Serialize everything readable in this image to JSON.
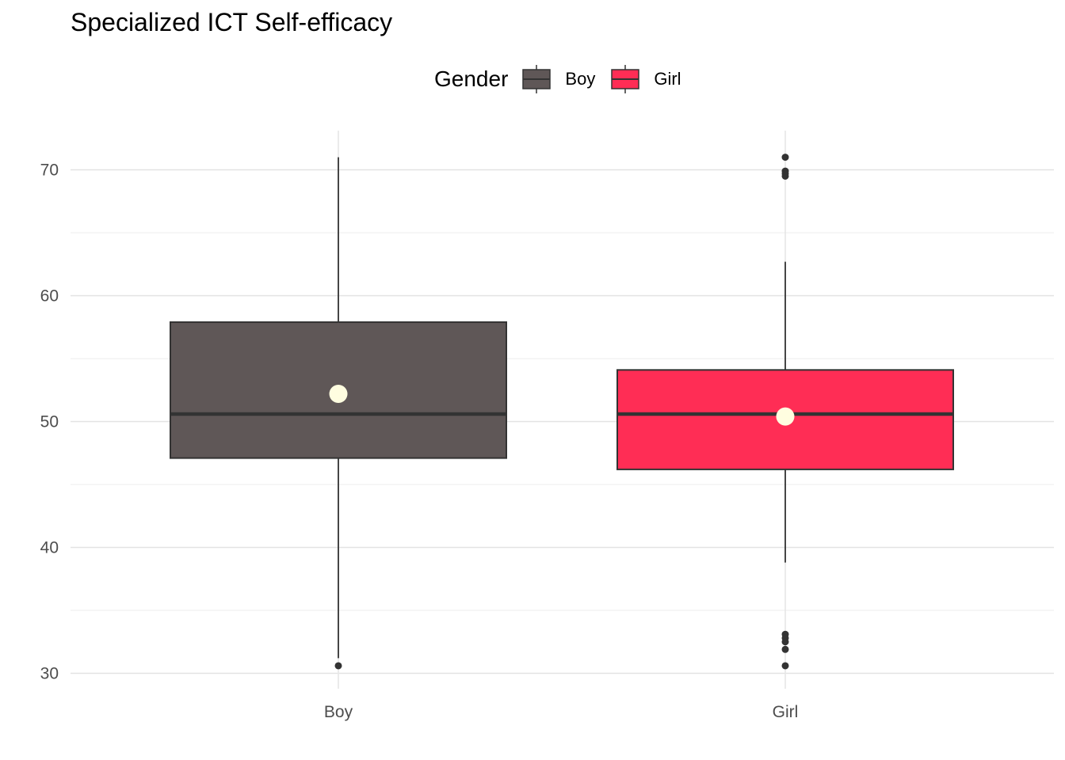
{
  "chart_data": {
    "type": "boxplot",
    "title": "Specialized ICT Self-efficacy",
    "xlabel": "",
    "ylabel": "",
    "categories": [
      "Boy",
      "Girl"
    ],
    "ylim": [
      28.6,
      73
    ],
    "yticks": [
      30,
      40,
      50,
      60,
      70
    ],
    "grid": true,
    "legend": {
      "title": "Gender",
      "position": "top",
      "entries": [
        "Boy",
        "Girl"
      ]
    },
    "colors": {
      "Boy": "#5f5757",
      "Girl": "#ff2d55",
      "mean_point": "#fffde0",
      "outline": "#333333"
    },
    "boxes": [
      {
        "group": "Boy",
        "whisker_low": 31.2,
        "q1": 47.1,
        "median": 50.6,
        "q3": 57.9,
        "whisker_high": 71.0,
        "mean": 52.2,
        "outliers": [
          30.6
        ]
      },
      {
        "group": "Girl",
        "whisker_low": 38.8,
        "q1": 46.2,
        "median": 50.6,
        "q3": 54.1,
        "whisker_high": 62.7,
        "mean": 50.4,
        "outliers": [
          71.0,
          69.9,
          69.7,
          69.5,
          33.1,
          32.8,
          32.5,
          31.9,
          30.6
        ]
      }
    ]
  }
}
